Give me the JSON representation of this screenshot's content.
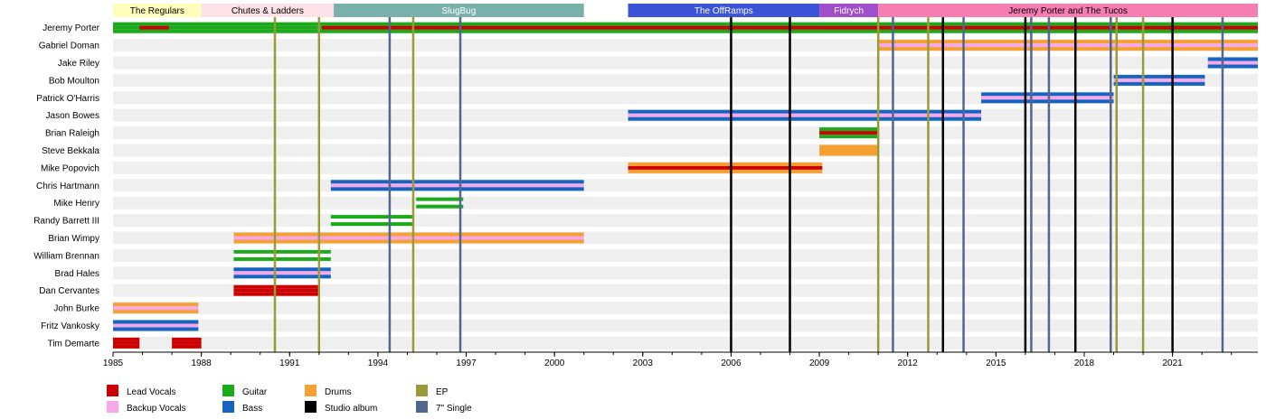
{
  "chart_data": {
    "type": "timeline",
    "xlim": [
      1985,
      2023.9
    ],
    "xticks": [
      1985,
      1988,
      1991,
      1994,
      1997,
      2000,
      2003,
      2006,
      2009,
      2012,
      2015,
      2018,
      2021
    ],
    "colors": {
      "lead_vocals": "#cc0000",
      "backup_vocals": "#f7a8e8",
      "guitar": "#1aaa1a",
      "bass": "#1565c0",
      "drums": "#f5a033",
      "ep": "#9a9a3a",
      "single": "#51678f",
      "studio": "#000000"
    },
    "eras": [
      {
        "label": "The Regulars",
        "start": 1985,
        "end": 1988,
        "color": "#ffffbb",
        "text": "#000000"
      },
      {
        "label": "Chutes & Ladders",
        "start": 1988,
        "end": 1992.5,
        "color": "#fde0e8",
        "text": "#000000"
      },
      {
        "label": "SlugBug",
        "start": 1992.5,
        "end": 2001,
        "color": "#7ab0aa",
        "text": "#ffffff"
      },
      {
        "label": "The OffRamps",
        "start": 2002.5,
        "end": 2009,
        "color": "#3b54d8",
        "text": "#ffffff"
      },
      {
        "label": "Fidrych",
        "start": 2009,
        "end": 2011,
        "color": "#a04ec9",
        "text": "#ffffff"
      },
      {
        "label": "Jeremy Porter and The Tucos",
        "start": 2011,
        "end": 2023.9,
        "color": "#f57db0",
        "text": "#000000"
      }
    ],
    "members": [
      {
        "name": "Jeremy Porter",
        "bars": [
          {
            "start": 1985,
            "end": 2023.9,
            "roles": [
              "guitar",
              "guitar",
              "guitar"
            ]
          },
          {
            "start": 1985.9,
            "end": 1986.9,
            "roles": [
              "lead_vocals"
            ]
          },
          {
            "start": 1992.1,
            "end": 2023.9,
            "roles": [
              "lead_vocals"
            ]
          }
        ]
      },
      {
        "name": "Gabriel Doman",
        "bars": [
          {
            "start": 2011,
            "end": 2023.9,
            "roles": [
              "drums",
              "backup_vocals",
              "drums"
            ]
          }
        ]
      },
      {
        "name": "Jake Riley",
        "bars": [
          {
            "start": 2022.2,
            "end": 2023.9,
            "roles": [
              "bass",
              "backup_vocals",
              "bass"
            ]
          }
        ]
      },
      {
        "name": "Bob Moulton",
        "bars": [
          {
            "start": 2019,
            "end": 2022.1,
            "roles": [
              "bass",
              "backup_vocals",
              "bass"
            ]
          }
        ]
      },
      {
        "name": "Patrick O'Harris",
        "bars": [
          {
            "start": 2014.5,
            "end": 2019,
            "roles": [
              "bass",
              "backup_vocals",
              "bass"
            ]
          }
        ]
      },
      {
        "name": "Jason Bowes",
        "bars": [
          {
            "start": 2002.5,
            "end": 2014.5,
            "roles": [
              "bass",
              "backup_vocals",
              "bass"
            ]
          }
        ]
      },
      {
        "name": "Brian Raleigh",
        "bars": [
          {
            "start": 2009,
            "end": 2011,
            "roles": [
              "guitar",
              "lead_vocals",
              "guitar"
            ]
          }
        ]
      },
      {
        "name": "Steve Bekkala",
        "bars": [
          {
            "start": 2009,
            "end": 2011,
            "roles": [
              "drums",
              "drums",
              "drums"
            ]
          }
        ]
      },
      {
        "name": "Mike Popovich",
        "bars": [
          {
            "start": 2002.5,
            "end": 2009.1,
            "roles": [
              "drums",
              "lead_vocals",
              "drums"
            ]
          }
        ]
      },
      {
        "name": "Chris Hartmann",
        "bars": [
          {
            "start": 1992.4,
            "end": 2001,
            "roles": [
              "bass",
              "backup_vocals",
              "bass"
            ]
          }
        ]
      },
      {
        "name": "Mike Henry",
        "bars": [
          {
            "start": 1995.3,
            "end": 1996.9,
            "roles": [
              "guitar",
              "white",
              "guitar"
            ]
          }
        ]
      },
      {
        "name": "Randy Barrett III",
        "bars": [
          {
            "start": 1992.4,
            "end": 1995.2,
            "roles": [
              "guitar",
              "white",
              "guitar"
            ]
          }
        ]
      },
      {
        "name": "Brian Wimpy",
        "bars": [
          {
            "start": 1989.1,
            "end": 2001,
            "roles": [
              "drums",
              "backup_vocals",
              "drums"
            ]
          }
        ]
      },
      {
        "name": "William Brennan",
        "bars": [
          {
            "start": 1989.1,
            "end": 1992.4,
            "roles": [
              "guitar",
              "white",
              "guitar"
            ]
          }
        ]
      },
      {
        "name": "Brad Hales",
        "bars": [
          {
            "start": 1989.1,
            "end": 1992.4,
            "roles": [
              "bass",
              "backup_vocals",
              "bass"
            ]
          }
        ]
      },
      {
        "name": "Dan Cervantes",
        "bars": [
          {
            "start": 1989.1,
            "end": 1992,
            "roles": [
              "lead_vocals",
              "lead_vocals",
              "lead_vocals"
            ]
          }
        ]
      },
      {
        "name": "John Burke",
        "bars": [
          {
            "start": 1985,
            "end": 1987.9,
            "roles": [
              "drums",
              "backup_vocals",
              "drums"
            ]
          }
        ]
      },
      {
        "name": "Fritz Vankosky",
        "bars": [
          {
            "start": 1985,
            "end": 1987.9,
            "roles": [
              "bass",
              "backup_vocals",
              "bass"
            ]
          }
        ]
      },
      {
        "name": "Tim Demarte",
        "bars": [
          {
            "start": 1985,
            "end": 1985.9,
            "roles": [
              "lead_vocals",
              "lead_vocals",
              "lead_vocals"
            ]
          },
          {
            "start": 1987,
            "end": 1988,
            "roles": [
              "lead_vocals",
              "lead_vocals",
              "lead_vocals"
            ]
          }
        ]
      }
    ],
    "releases": [
      {
        "x": 1990.5,
        "type": "ep"
      },
      {
        "x": 1992,
        "type": "ep"
      },
      {
        "x": 1994.4,
        "type": "single"
      },
      {
        "x": 1995.2,
        "type": "ep"
      },
      {
        "x": 1996.8,
        "type": "single"
      },
      {
        "x": 2006,
        "type": "studio"
      },
      {
        "x": 2008,
        "type": "studio"
      },
      {
        "x": 2011,
        "type": "ep"
      },
      {
        "x": 2011.5,
        "type": "single"
      },
      {
        "x": 2012.7,
        "type": "ep"
      },
      {
        "x": 2013.2,
        "type": "studio"
      },
      {
        "x": 2013.9,
        "type": "single"
      },
      {
        "x": 2016,
        "type": "studio"
      },
      {
        "x": 2016.2,
        "type": "single"
      },
      {
        "x": 2016.8,
        "type": "single"
      },
      {
        "x": 2017.7,
        "type": "studio"
      },
      {
        "x": 2018.9,
        "type": "single"
      },
      {
        "x": 2019.1,
        "type": "ep"
      },
      {
        "x": 2020,
        "type": "ep"
      },
      {
        "x": 2021,
        "type": "studio"
      },
      {
        "x": 2022.7,
        "type": "single"
      }
    ],
    "legend": [
      {
        "key": "lead_vocals",
        "label": "Lead Vocals"
      },
      {
        "key": "backup_vocals",
        "label": "Backup Vocals"
      },
      {
        "key": "guitar",
        "label": "Guitar"
      },
      {
        "key": "bass",
        "label": "Bass"
      },
      {
        "key": "drums",
        "label": "Drums"
      },
      {
        "key": "studio",
        "label": "Studio album"
      },
      {
        "key": "ep",
        "label": "EP"
      },
      {
        "key": "single",
        "label": "7\" Single"
      }
    ]
  }
}
